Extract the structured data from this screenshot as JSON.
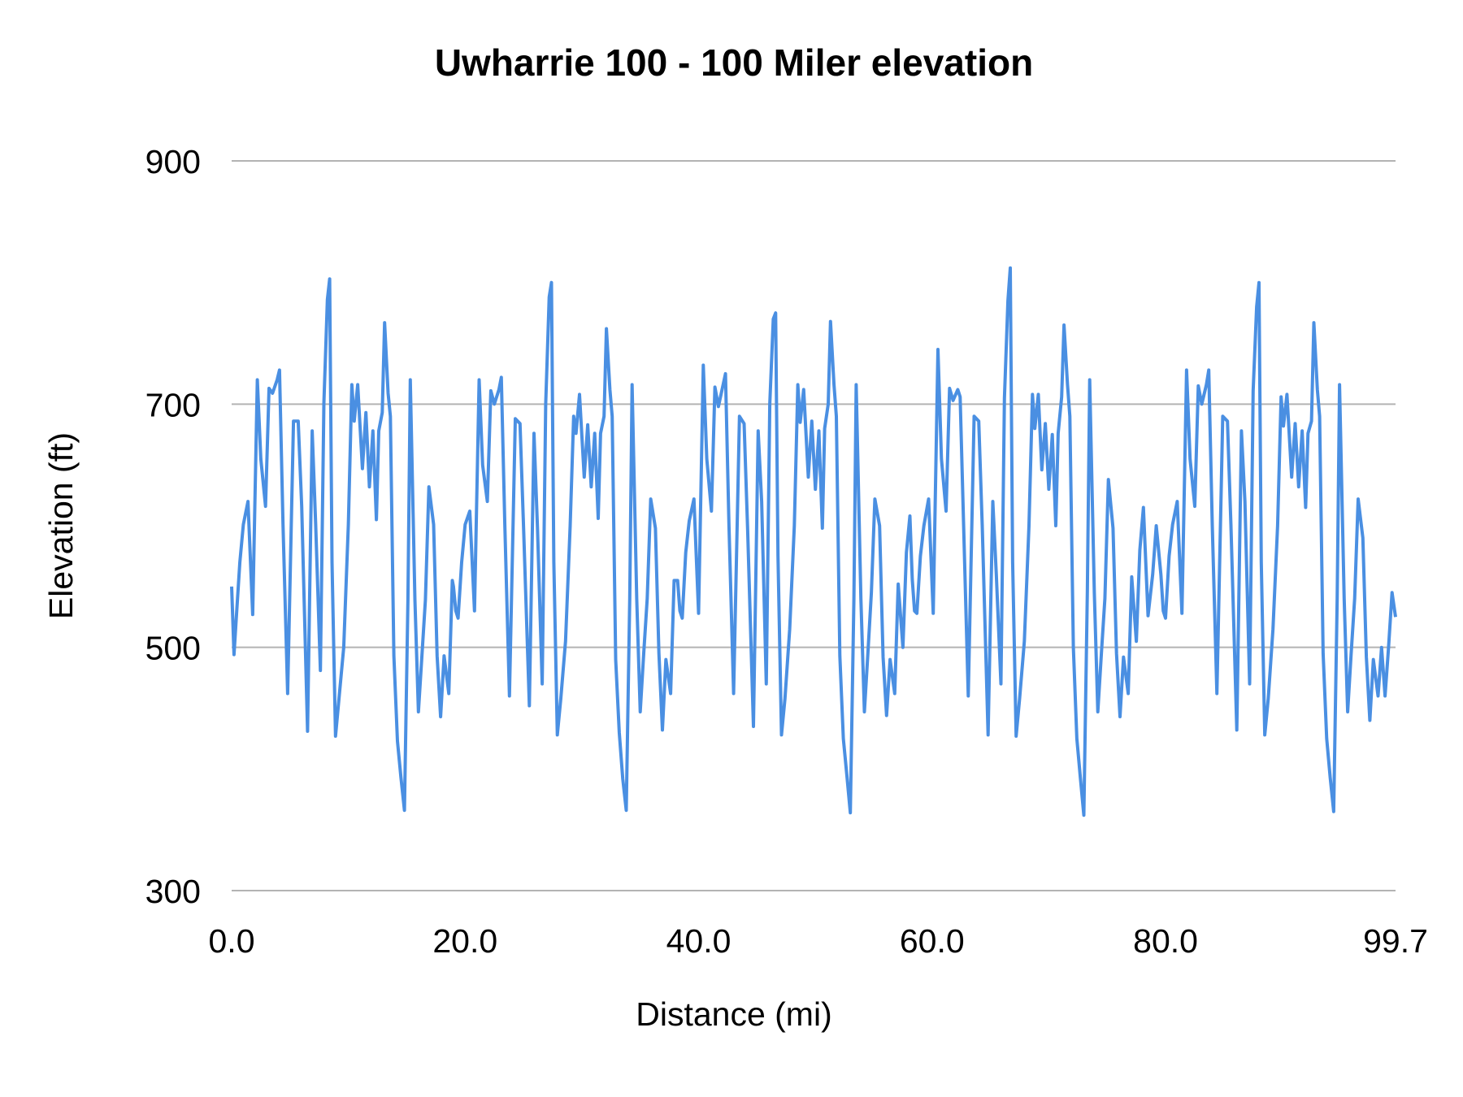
{
  "chart_data": {
    "type": "line",
    "title": "Uwharrie 100 - 100 Miler elevation",
    "xlabel": "Distance (mi)",
    "ylabel": "Elevation (ft)",
    "xlim": [
      0,
      99.7
    ],
    "ylim": [
      300,
      900
    ],
    "x_ticks": [
      "0.0",
      "20.0",
      "40.0",
      "60.0",
      "80.0",
      "99.7"
    ],
    "x_tick_values": [
      0,
      20,
      40,
      60,
      80,
      99.7
    ],
    "y_ticks": [
      "300",
      "500",
      "700",
      "900"
    ],
    "y_tick_values": [
      300,
      500,
      700,
      900
    ],
    "grid": "horizontal",
    "line_color": "#4a8fe2",
    "grid_color": "#b3b3b3",
    "points": [
      [
        0.0,
        550
      ],
      [
        0.2,
        494
      ],
      [
        0.4,
        524
      ],
      [
        0.7,
        570
      ],
      [
        1.0,
        601
      ],
      [
        1.4,
        620
      ],
      [
        1.8,
        527
      ],
      [
        2.2,
        720
      ],
      [
        2.5,
        655
      ],
      [
        2.9,
        616
      ],
      [
        3.2,
        713
      ],
      [
        3.5,
        709
      ],
      [
        3.9,
        720
      ],
      [
        4.1,
        728
      ],
      [
        4.4,
        601
      ],
      [
        4.8,
        462
      ],
      [
        5.3,
        686
      ],
      [
        5.7,
        686
      ],
      [
        6.0,
        616
      ],
      [
        6.5,
        431
      ],
      [
        6.9,
        678
      ],
      [
        7.2,
        601
      ],
      [
        7.6,
        481
      ],
      [
        7.9,
        701
      ],
      [
        8.2,
        786
      ],
      [
        8.4,
        803
      ],
      [
        8.6,
        570
      ],
      [
        8.9,
        427
      ],
      [
        9.2,
        458
      ],
      [
        9.6,
        500
      ],
      [
        10.0,
        601
      ],
      [
        10.3,
        716
      ],
      [
        10.5,
        686
      ],
      [
        10.8,
        716
      ],
      [
        11.2,
        647
      ],
      [
        11.5,
        693
      ],
      [
        11.8,
        632
      ],
      [
        12.1,
        678
      ],
      [
        12.4,
        605
      ],
      [
        12.6,
        678
      ],
      [
        12.9,
        693
      ],
      [
        13.1,
        767
      ],
      [
        13.4,
        709
      ],
      [
        13.6,
        690
      ],
      [
        13.9,
        493
      ],
      [
        14.2,
        423
      ],
      [
        14.5,
        393
      ],
      [
        14.8,
        366
      ],
      [
        15.1,
        539
      ],
      [
        15.3,
        720
      ],
      [
        15.7,
        539
      ],
      [
        16.0,
        447
      ],
      [
        16.3,
        493
      ],
      [
        16.6,
        539
      ],
      [
        16.9,
        632
      ],
      [
        17.3,
        601
      ],
      [
        17.6,
        493
      ],
      [
        17.9,
        443
      ],
      [
        18.2,
        493
      ],
      [
        18.6,
        462
      ],
      [
        18.9,
        555
      ],
      [
        19.0,
        550
      ],
      [
        19.2,
        530
      ],
      [
        19.4,
        524
      ],
      [
        19.7,
        570
      ],
      [
        20.0,
        601
      ],
      [
        20.4,
        612
      ],
      [
        20.8,
        530
      ],
      [
        21.2,
        720
      ],
      [
        21.5,
        650
      ],
      [
        21.9,
        620
      ],
      [
        22.2,
        711
      ],
      [
        22.5,
        700
      ],
      [
        22.9,
        712
      ],
      [
        23.1,
        722
      ],
      [
        23.4,
        601
      ],
      [
        23.8,
        460
      ],
      [
        24.3,
        688
      ],
      [
        24.7,
        684
      ],
      [
        25.0,
        600
      ],
      [
        25.5,
        452
      ],
      [
        25.9,
        676
      ],
      [
        26.2,
        598
      ],
      [
        26.6,
        470
      ],
      [
        26.9,
        700
      ],
      [
        27.2,
        788
      ],
      [
        27.4,
        800
      ],
      [
        27.6,
        570
      ],
      [
        27.9,
        428
      ],
      [
        28.2,
        458
      ],
      [
        28.6,
        505
      ],
      [
        29.0,
        600
      ],
      [
        29.3,
        690
      ],
      [
        29.5,
        676
      ],
      [
        29.8,
        708
      ],
      [
        30.2,
        640
      ],
      [
        30.5,
        683
      ],
      [
        30.8,
        632
      ],
      [
        31.1,
        676
      ],
      [
        31.4,
        606
      ],
      [
        31.6,
        676
      ],
      [
        31.9,
        690
      ],
      [
        32.1,
        762
      ],
      [
        32.4,
        712
      ],
      [
        32.6,
        690
      ],
      [
        32.9,
        490
      ],
      [
        33.2,
        430
      ],
      [
        33.5,
        392
      ],
      [
        33.8,
        366
      ],
      [
        34.1,
        540
      ],
      [
        34.3,
        716
      ],
      [
        34.7,
        540
      ],
      [
        35.0,
        447
      ],
      [
        35.3,
        495
      ],
      [
        35.6,
        540
      ],
      [
        35.9,
        622
      ],
      [
        36.3,
        598
      ],
      [
        36.6,
        495
      ],
      [
        36.9,
        432
      ],
      [
        37.2,
        490
      ],
      [
        37.6,
        462
      ],
      [
        37.9,
        555
      ],
      [
        38.2,
        555
      ],
      [
        38.4,
        530
      ],
      [
        38.6,
        524
      ],
      [
        38.9,
        578
      ],
      [
        39.2,
        604
      ],
      [
        39.6,
        622
      ],
      [
        40.0,
        528
      ],
      [
        40.4,
        732
      ],
      [
        40.7,
        655
      ],
      [
        41.1,
        612
      ],
      [
        41.4,
        714
      ],
      [
        41.7,
        698
      ],
      [
        42.1,
        716
      ],
      [
        42.3,
        725
      ],
      [
        42.6,
        600
      ],
      [
        43.0,
        462
      ],
      [
        43.5,
        690
      ],
      [
        43.9,
        684
      ],
      [
        44.2,
        598
      ],
      [
        44.7,
        435
      ],
      [
        45.1,
        678
      ],
      [
        45.4,
        620
      ],
      [
        45.8,
        470
      ],
      [
        46.1,
        700
      ],
      [
        46.4,
        770
      ],
      [
        46.6,
        775
      ],
      [
        46.8,
        575
      ],
      [
        47.1,
        428
      ],
      [
        47.4,
        458
      ],
      [
        47.8,
        515
      ],
      [
        48.2,
        600
      ],
      [
        48.5,
        716
      ],
      [
        48.7,
        685
      ],
      [
        49.0,
        712
      ],
      [
        49.4,
        640
      ],
      [
        49.7,
        686
      ],
      [
        50.0,
        630
      ],
      [
        50.3,
        678
      ],
      [
        50.6,
        598
      ],
      [
        50.8,
        680
      ],
      [
        51.1,
        700
      ],
      [
        51.3,
        768
      ],
      [
        51.6,
        716
      ],
      [
        51.8,
        690
      ],
      [
        52.1,
        493
      ],
      [
        52.4,
        425
      ],
      [
        52.7,
        395
      ],
      [
        53.0,
        364
      ],
      [
        53.3,
        540
      ],
      [
        53.5,
        716
      ],
      [
        53.9,
        540
      ],
      [
        54.2,
        447
      ],
      [
        54.5,
        495
      ],
      [
        54.8,
        545
      ],
      [
        55.1,
        622
      ],
      [
        55.5,
        600
      ],
      [
        55.8,
        492
      ],
      [
        56.1,
        444
      ],
      [
        56.4,
        490
      ],
      [
        56.8,
        462
      ],
      [
        57.1,
        552
      ],
      [
        57.5,
        500
      ],
      [
        57.8,
        578
      ],
      [
        58.1,
        608
      ],
      [
        58.3,
        556
      ],
      [
        58.5,
        530
      ],
      [
        58.7,
        528
      ],
      [
        59.0,
        575
      ],
      [
        59.3,
        600
      ],
      [
        59.7,
        622
      ],
      [
        60.1,
        528
      ],
      [
        60.5,
        745
      ],
      [
        60.8,
        655
      ],
      [
        61.2,
        612
      ],
      [
        61.5,
        713
      ],
      [
        61.8,
        703
      ],
      [
        62.2,
        712
      ],
      [
        62.4,
        706
      ],
      [
        62.7,
        600
      ],
      [
        63.1,
        460
      ],
      [
        63.6,
        690
      ],
      [
        64.0,
        686
      ],
      [
        64.3,
        600
      ],
      [
        64.8,
        428
      ],
      [
        65.2,
        620
      ],
      [
        65.5,
        560
      ],
      [
        65.9,
        470
      ],
      [
        66.2,
        705
      ],
      [
        66.5,
        785
      ],
      [
        66.7,
        812
      ],
      [
        66.9,
        570
      ],
      [
        67.2,
        427
      ],
      [
        67.5,
        458
      ],
      [
        67.9,
        505
      ],
      [
        68.3,
        600
      ],
      [
        68.6,
        708
      ],
      [
        68.8,
        680
      ],
      [
        69.1,
        708
      ],
      [
        69.4,
        646
      ],
      [
        69.7,
        684
      ],
      [
        70.0,
        630
      ],
      [
        70.3,
        675
      ],
      [
        70.6,
        600
      ],
      [
        70.8,
        676
      ],
      [
        71.1,
        706
      ],
      [
        71.3,
        765
      ],
      [
        71.6,
        716
      ],
      [
        71.8,
        690
      ],
      [
        72.1,
        500
      ],
      [
        72.4,
        425
      ],
      [
        72.7,
        393
      ],
      [
        73.0,
        362
      ],
      [
        73.3,
        545
      ],
      [
        73.5,
        720
      ],
      [
        73.9,
        545
      ],
      [
        74.2,
        447
      ],
      [
        74.5,
        495
      ],
      [
        74.8,
        540
      ],
      [
        75.1,
        638
      ],
      [
        75.5,
        598
      ],
      [
        75.8,
        495
      ],
      [
        76.1,
        443
      ],
      [
        76.4,
        492
      ],
      [
        76.8,
        462
      ],
      [
        77.1,
        558
      ],
      [
        77.5,
        505
      ],
      [
        77.8,
        580
      ],
      [
        78.1,
        615
      ],
      [
        78.5,
        526
      ],
      [
        78.9,
        560
      ],
      [
        79.2,
        600
      ],
      [
        79.6,
        560
      ],
      [
        79.8,
        530
      ],
      [
        80.0,
        524
      ],
      [
        80.3,
        575
      ],
      [
        80.6,
        601
      ],
      [
        81.0,
        620
      ],
      [
        81.4,
        528
      ],
      [
        81.8,
        728
      ],
      [
        82.1,
        655
      ],
      [
        82.5,
        616
      ],
      [
        82.8,
        715
      ],
      [
        83.1,
        700
      ],
      [
        83.5,
        716
      ],
      [
        83.7,
        728
      ],
      [
        84.0,
        601
      ],
      [
        84.4,
        462
      ],
      [
        84.9,
        690
      ],
      [
        85.3,
        686
      ],
      [
        85.6,
        600
      ],
      [
        86.1,
        432
      ],
      [
        86.5,
        678
      ],
      [
        86.8,
        620
      ],
      [
        87.2,
        470
      ],
      [
        87.5,
        711
      ],
      [
        87.8,
        780
      ],
      [
        88.0,
        800
      ],
      [
        88.2,
        570
      ],
      [
        88.5,
        428
      ],
      [
        88.8,
        458
      ],
      [
        89.2,
        515
      ],
      [
        89.6,
        600
      ],
      [
        89.9,
        706
      ],
      [
        90.1,
        682
      ],
      [
        90.4,
        708
      ],
      [
        90.8,
        640
      ],
      [
        91.1,
        684
      ],
      [
        91.4,
        632
      ],
      [
        91.7,
        678
      ],
      [
        92.0,
        615
      ],
      [
        92.2,
        676
      ],
      [
        92.5,
        686
      ],
      [
        92.7,
        767
      ],
      [
        93.0,
        712
      ],
      [
        93.2,
        690
      ],
      [
        93.5,
        495
      ],
      [
        93.8,
        425
      ],
      [
        94.1,
        393
      ],
      [
        94.4,
        365
      ],
      [
        94.7,
        540
      ],
      [
        94.9,
        716
      ],
      [
        95.3,
        540
      ],
      [
        95.6,
        447
      ],
      [
        95.9,
        495
      ],
      [
        96.2,
        540
      ],
      [
        96.5,
        622
      ],
      [
        96.9,
        590
      ],
      [
        97.2,
        492
      ],
      [
        97.5,
        440
      ],
      [
        97.8,
        490
      ],
      [
        98.2,
        460
      ],
      [
        98.5,
        500
      ],
      [
        98.8,
        460
      ],
      [
        99.1,
        500
      ],
      [
        99.4,
        545
      ],
      [
        99.7,
        525
      ]
    ]
  }
}
